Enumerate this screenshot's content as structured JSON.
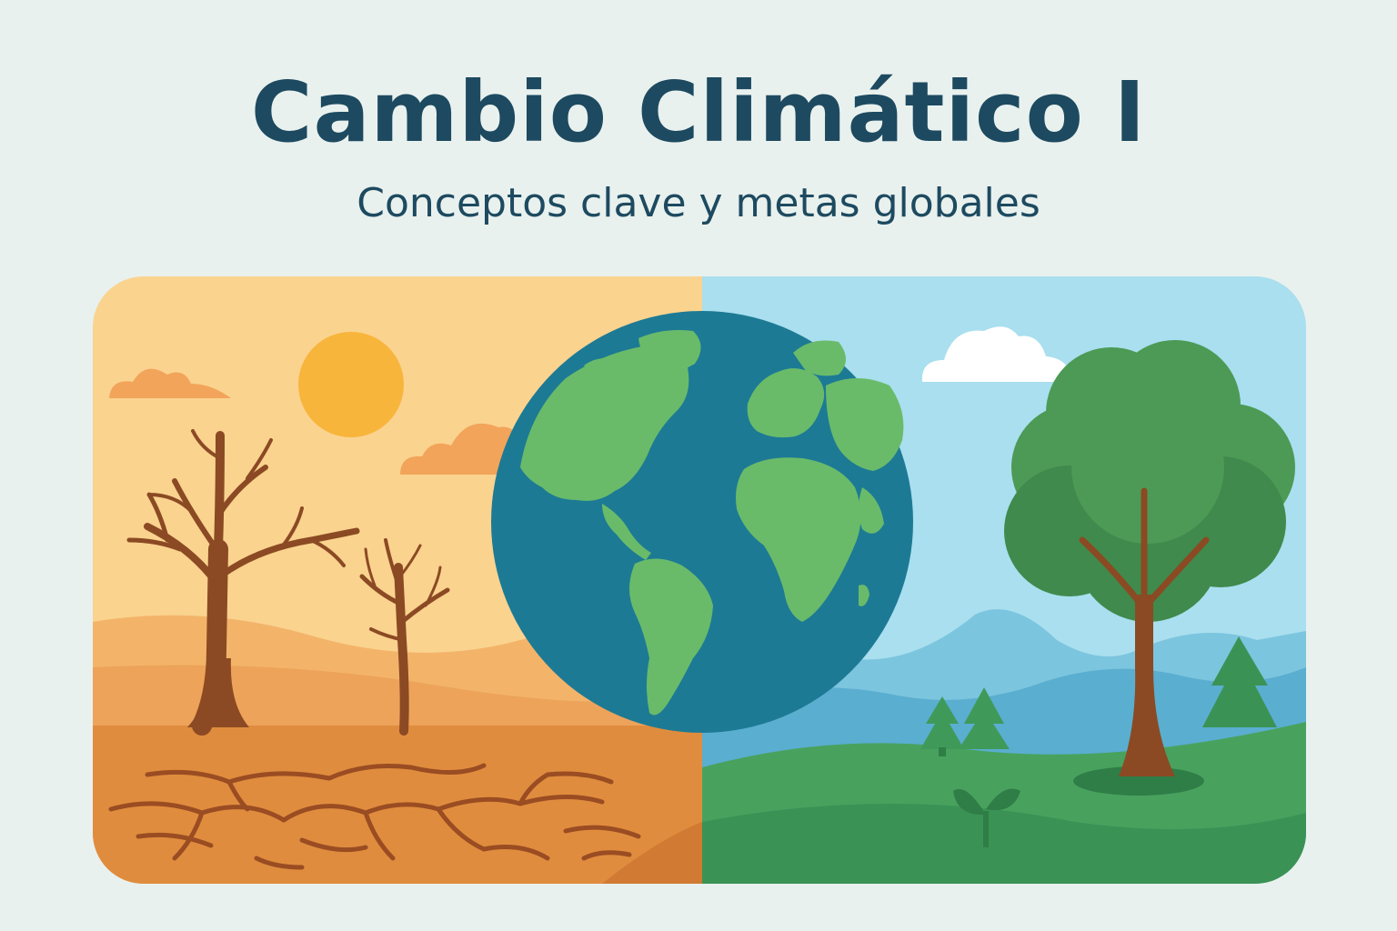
{
  "header": {
    "title": "Cambio Climático I",
    "subtitle": "Conceptos clave y metas globales"
  },
  "colors": {
    "title": "#1d4a60",
    "background": "#e9f1ee",
    "dry_sky": "#fad38f",
    "dry_ground": "#e08c3e",
    "sun": "#f8b53c",
    "wet_sky": "#a9dfef",
    "grass": "#3f9a5a",
    "ocean": "#1d7a94",
    "land": "#69bb6a",
    "trunk": "#8b4a23"
  },
  "icons": [
    "sun-icon",
    "cloud-icon",
    "dead-tree-icon",
    "cracked-ground-icon",
    "earth-globe-icon",
    "green-tree-icon",
    "pine-tree-icon",
    "mountains-icon",
    "sprout-icon"
  ]
}
